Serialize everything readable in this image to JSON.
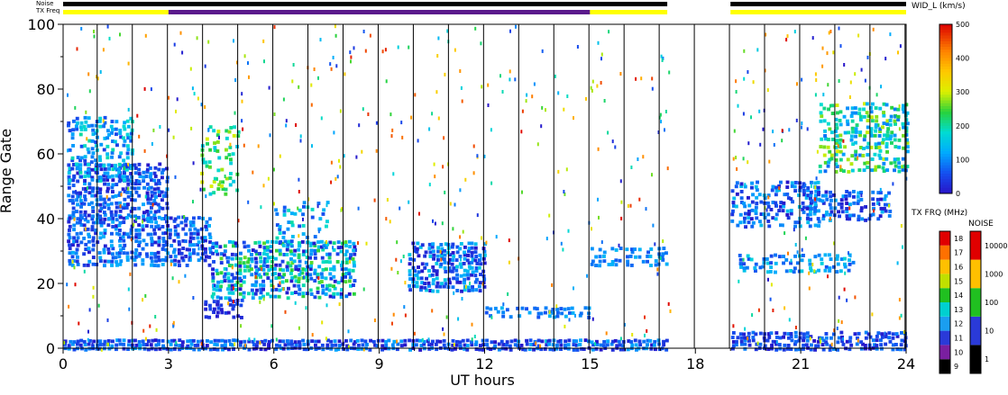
{
  "chart_data": {
    "type": "heatmap",
    "xlabel": "UT hours",
    "ylabel": "Range Gate",
    "xlim": [
      0,
      24
    ],
    "ylim": [
      0,
      100
    ],
    "x_ticks": [
      "0",
      "3",
      "6",
      "9",
      "12",
      "15",
      "18",
      "21",
      "24"
    ],
    "y_ticks": [
      "0",
      "20",
      "40",
      "60",
      "80",
      "100"
    ],
    "vertical_scan_lines_hours": [
      0.97,
      1.97,
      2.97,
      3.97,
      4.97,
      5.97,
      6.97,
      7.97,
      8.97,
      9.97,
      10.97,
      11.97,
      12.97,
      13.97,
      14.97,
      15.97,
      16.97,
      17.97,
      18.97,
      19.97,
      20.97,
      21.97,
      22.97,
      23.97
    ],
    "data_gap_hours": [
      17.3,
      19.0
    ],
    "status_bars": {
      "noise_label": "Noise",
      "txfreq_label": "TX Freq",
      "noise_segments": [
        {
          "start": 0.0,
          "end": 17.2,
          "color": "#000000"
        },
        {
          "start": 19.0,
          "end": 24.0,
          "color": "#000000"
        }
      ],
      "txfreq_segments": [
        {
          "start": 0.0,
          "end": 3.0,
          "color": "#ffff00"
        },
        {
          "start": 3.0,
          "end": 15.0,
          "color": "#5a1a8c"
        },
        {
          "start": 15.0,
          "end": 17.2,
          "color": "#ffff00"
        },
        {
          "start": 19.0,
          "end": 24.0,
          "color": "#ffff00"
        }
      ]
    },
    "echo_regions": [
      {
        "x0": 0.1,
        "x1": 3.0,
        "y0": 40,
        "y1": 58,
        "density": 0.7,
        "c0": 0,
        "c1": 120
      },
      {
        "x0": 0.1,
        "x1": 2.0,
        "y0": 52,
        "y1": 72,
        "density": 0.55,
        "c0": 40,
        "c1": 200
      },
      {
        "x0": 0.1,
        "x1": 4.2,
        "y0": 26,
        "y1": 42,
        "density": 0.7,
        "c0": 0,
        "c1": 130
      },
      {
        "x0": 3.9,
        "x1": 5.0,
        "y0": 48,
        "y1": 70,
        "density": 0.35,
        "c0": 150,
        "c1": 300
      },
      {
        "x0": 4.2,
        "x1": 8.3,
        "y0": 16,
        "y1": 34,
        "density": 0.7,
        "c0": 0,
        "c1": 260
      },
      {
        "x0": 6.0,
        "x1": 7.5,
        "y0": 32,
        "y1": 46,
        "density": 0.3,
        "c0": 50,
        "c1": 200
      },
      {
        "x0": 9.8,
        "x1": 12.0,
        "y0": 18,
        "y1": 34,
        "density": 0.75,
        "c0": 0,
        "c1": 160
      },
      {
        "x0": 12.0,
        "x1": 15.0,
        "y0": 10,
        "y1": 14,
        "density": 0.5,
        "c0": 60,
        "c1": 140
      },
      {
        "x0": 15.0,
        "x1": 17.2,
        "y0": 26,
        "y1": 32,
        "density": 0.5,
        "c0": 60,
        "c1": 140
      },
      {
        "x0": 4.0,
        "x1": 5.1,
        "y0": 10,
        "y1": 16,
        "density": 0.6,
        "c0": 0,
        "c1": 60
      },
      {
        "x0": 0.0,
        "x1": 17.2,
        "y0": 0,
        "y1": 4,
        "density": 0.9,
        "c0": 0,
        "c1": 120
      },
      {
        "x0": 19.0,
        "x1": 21.5,
        "y0": 38,
        "y1": 52,
        "density": 0.5,
        "c0": 0,
        "c1": 150
      },
      {
        "x0": 21.0,
        "x1": 23.6,
        "y0": 40,
        "y1": 50,
        "density": 0.5,
        "c0": 0,
        "c1": 140
      },
      {
        "x0": 21.5,
        "x1": 24.0,
        "y0": 55,
        "y1": 76,
        "density": 0.55,
        "c0": 80,
        "c1": 300
      },
      {
        "x0": 19.2,
        "x1": 22.5,
        "y0": 24,
        "y1": 30,
        "density": 0.55,
        "c0": 50,
        "c1": 180
      },
      {
        "x0": 19.0,
        "x1": 24.0,
        "y0": 0,
        "y1": 6,
        "density": 0.7,
        "c0": 0,
        "c1": 100
      }
    ],
    "scatter_noise": {
      "count": 700,
      "y_range": [
        0,
        100
      ]
    },
    "colorbars": {
      "velocity": {
        "title": "WID_L (km/s)",
        "ticks": [
          "0",
          "100",
          "200",
          "300",
          "400",
          "500"
        ],
        "range": [
          0,
          500
        ]
      },
      "txfreq": {
        "title": "TX FRQ (MHz)",
        "ticks": [
          "9",
          "10",
          "11",
          "12",
          "13",
          "14",
          "15",
          "16",
          "17",
          "18"
        ],
        "colors": [
          "#000000",
          "#7a1fa0",
          "#2a3ad8",
          "#1a9ef0",
          "#00d0d0",
          "#20c020",
          "#c0e000",
          "#ffc000",
          "#ff7000",
          "#e00000"
        ]
      },
      "noise": {
        "title": "NOISE",
        "ticks": [
          "1",
          "10",
          "100",
          "1000",
          "10000"
        ],
        "colors": [
          "#000000",
          "#2a3ad8",
          "#20c020",
          "#ffc000",
          "#e00000"
        ]
      }
    }
  }
}
